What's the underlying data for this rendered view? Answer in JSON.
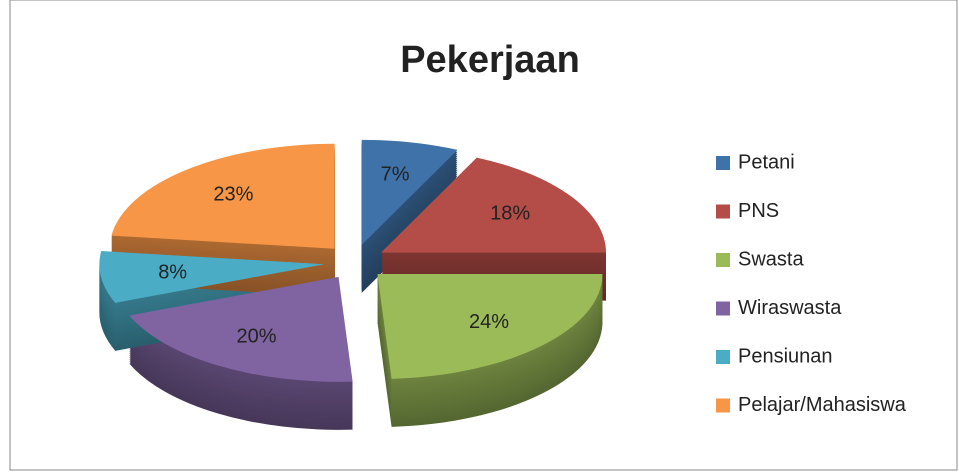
{
  "chart_data": {
    "type": "pie",
    "title": "Pekerjaan",
    "categories": [
      "Petani",
      "PNS",
      "Swasta",
      "Wiraswasta",
      "Pensiunan",
      "Pelajar/Mahasiswa"
    ],
    "values": [
      7,
      18,
      24,
      20,
      8,
      23
    ],
    "value_labels": [
      "7%",
      "18%",
      "24%",
      "20%",
      "8%",
      "23%"
    ],
    "colors": [
      "#3f72a8",
      "#b44c47",
      "#9bbb59",
      "#8064a2",
      "#4bacc6",
      "#f79646"
    ],
    "legend": "right"
  }
}
